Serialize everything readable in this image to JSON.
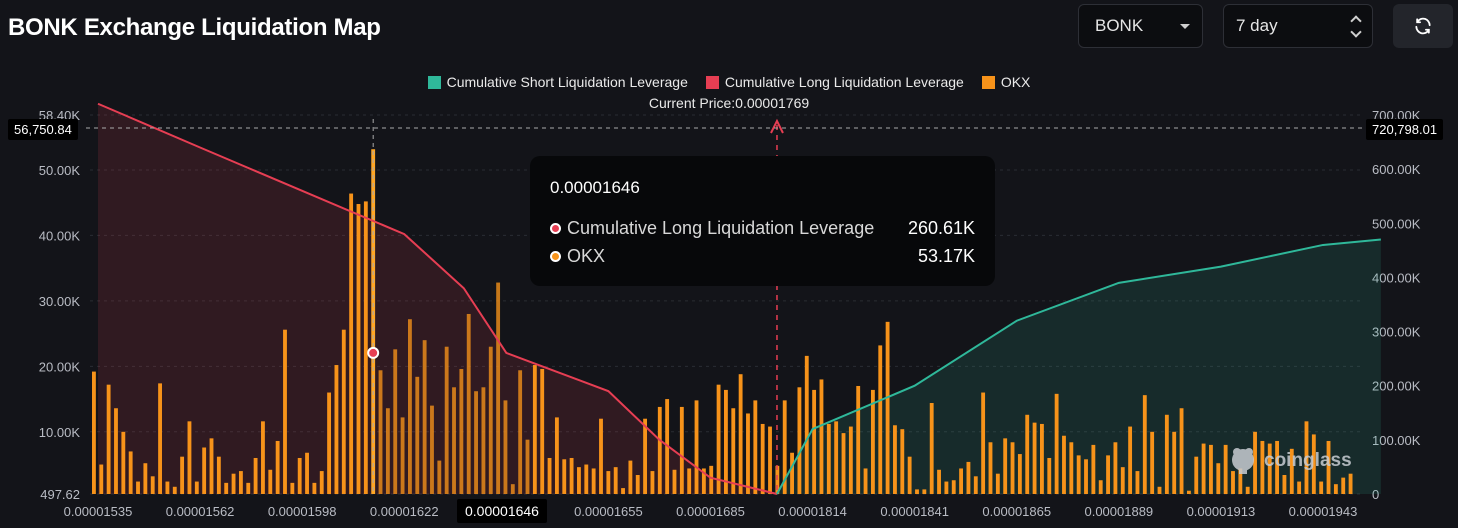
{
  "header": {
    "title": "BONK Exchange Liquidation Map",
    "symbol_select": "BONK",
    "range_select": "7 day",
    "refresh_icon": "refresh-icon"
  },
  "legend": {
    "short": "Cumulative Short Liquidation Leverage",
    "long": "Cumulative Long Liquidation Leverage",
    "okx": "OKX",
    "current_price": "Current Price:0.00001769"
  },
  "colors": {
    "short": "#2fb89a",
    "long": "#e63e53",
    "okx": "#f7931a",
    "background": "#131419"
  },
  "tooltip": {
    "price": "0.00001646",
    "rows": [
      {
        "label": "Cumulative Long Liquidation Leverage",
        "value": "260.61K",
        "color": "#e63e53"
      },
      {
        "label": "OKX",
        "value": "53.17K",
        "color": "#f7931a"
      }
    ]
  },
  "crosshair": {
    "left_value": "56,750.84",
    "right_value": "720,798.01",
    "x_value": "0.00001646"
  },
  "watermark": "coinglass",
  "chart_data": {
    "type": "bar",
    "x_tick_labels": [
      "0.00001535",
      "0.00001562",
      "0.00001598",
      "0.00001622",
      "0.00001646",
      "0.00001655",
      "0.00001685",
      "0.00001814",
      "0.00001841",
      "0.00001865",
      "0.00001889",
      "0.00001913",
      "0.00001943"
    ],
    "left_axis": {
      "ticks": [
        "497.62",
        "10.00K",
        "20.00K",
        "30.00K",
        "40.00K",
        "50.00K",
        "58.40K"
      ],
      "min": 497.62,
      "max": 58400
    },
    "right_axis": {
      "ticks": [
        "0",
        "100.00K",
        "200.00K",
        "300.00K",
        "400.00K",
        "500.00K",
        "600.00K",
        "700.00K"
      ],
      "min": 0,
      "max": 700000
    },
    "current_price": 1.769e-05,
    "hover_price": 1.646e-05,
    "okx_bars": [
      19200,
      5000,
      17200,
      13600,
      10000,
      7000,
      2400,
      5200,
      3200,
      17400,
      2400,
      1600,
      6200,
      11600,
      2400,
      7600,
      9000,
      6200,
      2200,
      3600,
      4000,
      2200,
      6000,
      11600,
      4200,
      8600,
      25600,
      2200,
      6000,
      6800,
      2200,
      4000,
      16000,
      20200,
      25600,
      46400,
      44800,
      45200,
      53170,
      19400,
      13600,
      22600,
      12200,
      27200,
      18400,
      24000,
      14000,
      5600,
      23000,
      16800,
      19600,
      28000,
      16200,
      16800,
      23000,
      32800,
      14800,
      2000,
      19400,
      8800,
      20200,
      19600,
      6000,
      12200,
      5800,
      6000,
      4600,
      5000,
      4400,
      12000,
      4000,
      4600,
      1400,
      5600,
      3400,
      12000,
      4000,
      13800,
      15000,
      4200,
      13800,
      4400,
      14800,
      4400,
      4800,
      17200,
      16400,
      13600,
      18800,
      12800,
      14800,
      11200,
      10800,
      4800,
      14800,
      6800,
      16800,
      21600,
      16400,
      18000,
      11200,
      11600,
      9800,
      10800,
      17000,
      4400,
      16400,
      23200,
      26800,
      11000,
      10400,
      6200,
      1200,
      1200,
      14400,
      4200,
      2400,
      2600,
      4400,
      5400,
      3200,
      16000,
      8400,
      3600,
      9000,
      8400,
      6600,
      12600,
      11400,
      11200,
      6000,
      15800,
      9400,
      8400,
      6400,
      5800,
      8000,
      2600,
      6400,
      8400,
      4600,
      10800,
      4000,
      15600,
      10000,
      1600,
      12600,
      10000,
      13600,
      1000,
      6200,
      8200,
      8000,
      5200,
      8000,
      4000,
      4400,
      1600,
      10000,
      8600,
      8200,
      8600,
      3400,
      7400,
      2400,
      11600,
      9600,
      2400,
      8600,
      2000,
      3000,
      3600
    ],
    "long_cumulative": [
      [
        1.535e-05,
        720798
      ],
      [
        1.562e-05,
        640000
      ],
      [
        1.598e-05,
        560000
      ],
      [
        1.622e-05,
        480000
      ],
      [
        1.636e-05,
        380000
      ],
      [
        1.646e-05,
        260610
      ],
      [
        1.655e-05,
        190000
      ],
      [
        1.67e-05,
        100000
      ],
      [
        1.685e-05,
        30000
      ],
      [
        1.769e-05,
        0
      ]
    ],
    "short_cumulative": [
      [
        1.769e-05,
        0
      ],
      [
        1.814e-05,
        120000
      ],
      [
        1.841e-05,
        200000
      ],
      [
        1.865e-05,
        320000
      ],
      [
        1.889e-05,
        390000
      ],
      [
        1.913e-05,
        420000
      ],
      [
        1.943e-05,
        460000
      ],
      [
        1.96e-05,
        470000
      ]
    ]
  }
}
